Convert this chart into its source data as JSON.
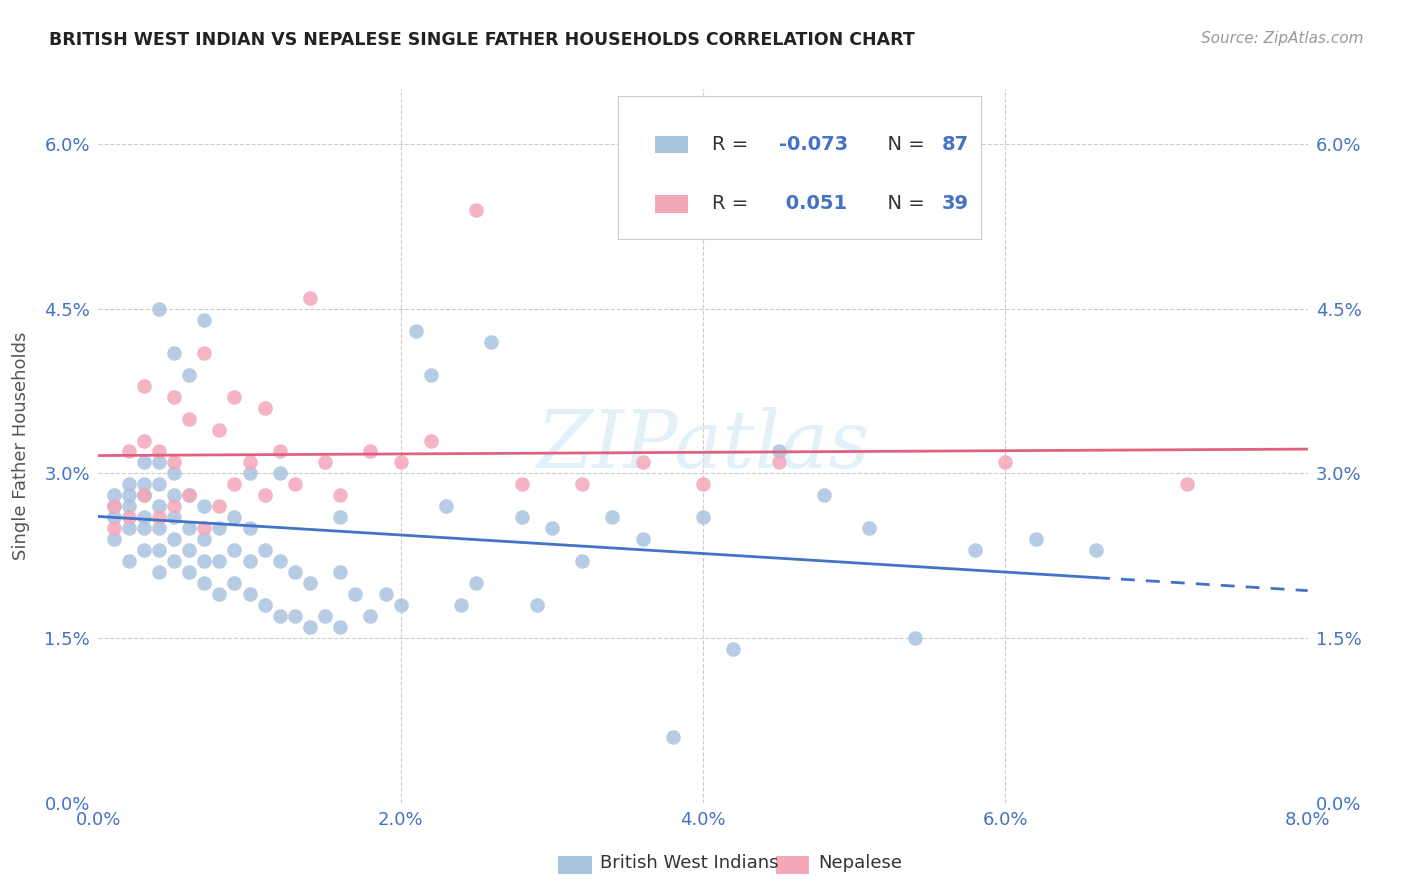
{
  "title": "BRITISH WEST INDIAN VS NEPALESE SINGLE FATHER HOUSEHOLDS CORRELATION CHART",
  "source": "Source: ZipAtlas.com",
  "ylabel": "Single Father Households",
  "xlim": [
    0.0,
    0.08
  ],
  "ylim": [
    0.0,
    0.065
  ],
  "xtick_vals": [
    0.0,
    0.02,
    0.04,
    0.06,
    0.08
  ],
  "ytick_vals": [
    0.0,
    0.015,
    0.03,
    0.045,
    0.06
  ],
  "xtick_labels": [
    "0.0%",
    "2.0%",
    "4.0%",
    "6.0%",
    "8.0%"
  ],
  "ytick_labels": [
    "0.0%",
    "1.5%",
    "3.0%",
    "4.5%",
    "6.0%"
  ],
  "blue_R": -0.073,
  "blue_N": 87,
  "pink_R": 0.051,
  "pink_N": 39,
  "blue_color": "#a8c4e0",
  "pink_color": "#f4a7b9",
  "blue_line_color": "#4472c4",
  "pink_line_color": "#e06080",
  "watermark_color": "#d0e8f5",
  "blue_x": [
    0.001,
    0.001,
    0.001,
    0.001,
    0.002,
    0.002,
    0.002,
    0.002,
    0.002,
    0.003,
    0.003,
    0.003,
    0.003,
    0.003,
    0.003,
    0.004,
    0.004,
    0.004,
    0.004,
    0.004,
    0.004,
    0.005,
    0.005,
    0.005,
    0.005,
    0.005,
    0.006,
    0.006,
    0.006,
    0.006,
    0.007,
    0.007,
    0.007,
    0.007,
    0.008,
    0.008,
    0.008,
    0.009,
    0.009,
    0.009,
    0.01,
    0.01,
    0.01,
    0.011,
    0.011,
    0.012,
    0.012,
    0.013,
    0.013,
    0.014,
    0.014,
    0.015,
    0.016,
    0.016,
    0.017,
    0.018,
    0.019,
    0.02,
    0.021,
    0.022,
    0.023,
    0.024,
    0.025,
    0.026,
    0.028,
    0.029,
    0.03,
    0.032,
    0.034,
    0.036,
    0.038,
    0.04,
    0.042,
    0.045,
    0.048,
    0.051,
    0.054,
    0.058,
    0.062,
    0.066,
    0.004,
    0.005,
    0.006,
    0.007,
    0.01,
    0.012,
    0.016
  ],
  "blue_y": [
    0.024,
    0.026,
    0.027,
    0.028,
    0.022,
    0.025,
    0.027,
    0.028,
    0.029,
    0.023,
    0.025,
    0.026,
    0.028,
    0.029,
    0.031,
    0.021,
    0.023,
    0.025,
    0.027,
    0.029,
    0.031,
    0.022,
    0.024,
    0.026,
    0.028,
    0.03,
    0.021,
    0.023,
    0.025,
    0.028,
    0.02,
    0.022,
    0.024,
    0.027,
    0.019,
    0.022,
    0.025,
    0.02,
    0.023,
    0.026,
    0.019,
    0.022,
    0.025,
    0.018,
    0.023,
    0.017,
    0.022,
    0.017,
    0.021,
    0.016,
    0.02,
    0.017,
    0.016,
    0.021,
    0.019,
    0.017,
    0.019,
    0.018,
    0.043,
    0.039,
    0.027,
    0.018,
    0.02,
    0.042,
    0.026,
    0.018,
    0.025,
    0.022,
    0.026,
    0.024,
    0.006,
    0.026,
    0.014,
    0.032,
    0.028,
    0.025,
    0.015,
    0.023,
    0.024,
    0.023,
    0.045,
    0.041,
    0.039,
    0.044,
    0.03,
    0.03,
    0.026
  ],
  "pink_x": [
    0.001,
    0.001,
    0.002,
    0.002,
    0.003,
    0.003,
    0.003,
    0.004,
    0.004,
    0.005,
    0.005,
    0.005,
    0.006,
    0.006,
    0.007,
    0.007,
    0.008,
    0.008,
    0.009,
    0.009,
    0.01,
    0.011,
    0.011,
    0.012,
    0.013,
    0.014,
    0.015,
    0.016,
    0.018,
    0.02,
    0.022,
    0.025,
    0.028,
    0.032,
    0.036,
    0.04,
    0.045,
    0.06,
    0.072
  ],
  "pink_y": [
    0.025,
    0.027,
    0.026,
    0.032,
    0.028,
    0.033,
    0.038,
    0.026,
    0.032,
    0.027,
    0.031,
    0.037,
    0.028,
    0.035,
    0.025,
    0.041,
    0.027,
    0.034,
    0.029,
    0.037,
    0.031,
    0.028,
    0.036,
    0.032,
    0.029,
    0.046,
    0.031,
    0.028,
    0.032,
    0.031,
    0.033,
    0.054,
    0.029,
    0.029,
    0.031,
    0.029,
    0.031,
    0.031,
    0.029
  ]
}
